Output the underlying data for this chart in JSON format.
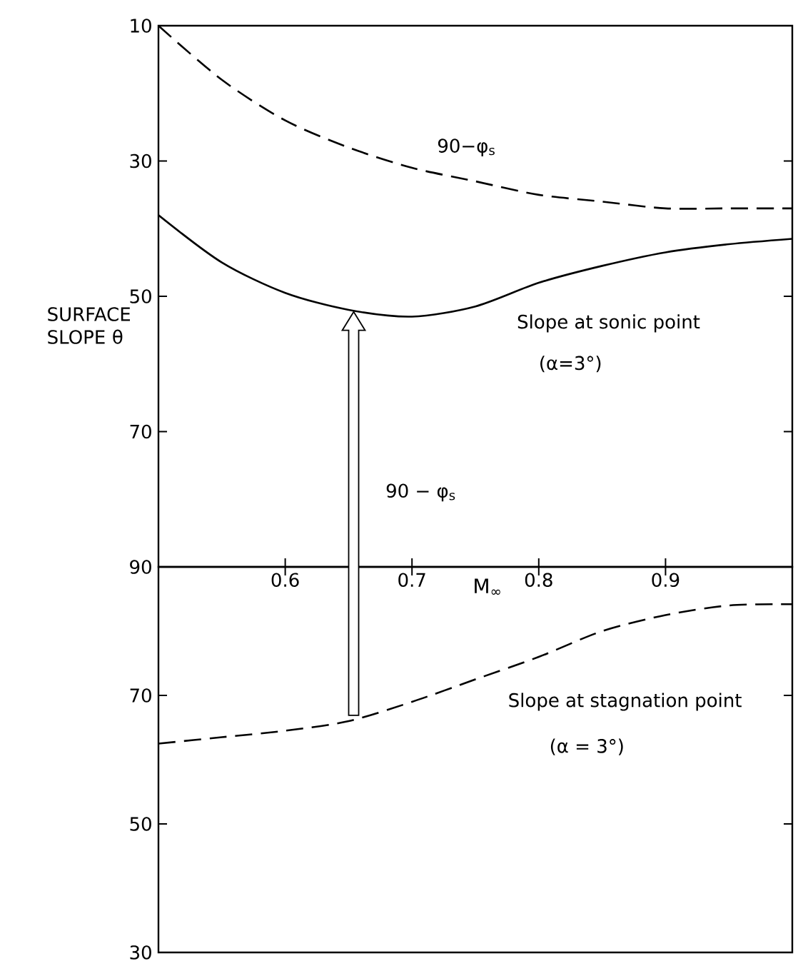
{
  "chart_data": [
    {
      "type": "line",
      "ylabel": "SURFACE SLOPE θ",
      "xlabel": "M$_{∞}$",
      "x": [
        0.5,
        0.55,
        0.6,
        0.65,
        0.7,
        0.75,
        0.8,
        0.85,
        0.9,
        0.95,
        1.0
      ],
      "series": [
        {
          "color": "#000000",
          "line_style": "dashed",
          "values": [
            10,
            18,
            24,
            28,
            31,
            33,
            35,
            36,
            37,
            37,
            37
          ]
        },
        {
          "color": "#000000",
          "line_style": "solid",
          "values": [
            38,
            45,
            49.5,
            52,
            53,
            51.5,
            48,
            45.5,
            43.5,
            42.3,
            41.5
          ]
        }
      ],
      "xlim": [
        0.5,
        1.0
      ],
      "ylim": [
        90,
        10
      ],
      "xticks": [
        0.6,
        0.7,
        0.8,
        0.9
      ],
      "yticks": [
        10,
        30,
        50,
        70,
        90
      ],
      "annotations": [
        "90−φ$_{s}$",
        "Slope at  sonic point",
        "(α=3°)",
        "90 − φ$_{s}$"
      ]
    },
    {
      "type": "line",
      "x": [
        0.5,
        0.55,
        0.6,
        0.65,
        0.7,
        0.75,
        0.8,
        0.85,
        0.9,
        0.95,
        1.0
      ],
      "series": [
        {
          "color": "#000000",
          "line_style": "dashed",
          "values": [
            62.5,
            63.5,
            64.5,
            66,
            69,
            72.5,
            76,
            80,
            82.5,
            84,
            84.2
          ]
        }
      ],
      "xlim": [
        0.5,
        1.0
      ],
      "xticks": [
        0.6,
        0.7,
        0.8,
        0.9
      ],
      "ylim": [
        30,
        90
      ],
      "yticks": [
        30,
        50,
        70
      ],
      "tick_labels": "y",
      "annotations": [
        "Slope at stagnation point",
        "(α = 3°)"
      ]
    }
  ]
}
